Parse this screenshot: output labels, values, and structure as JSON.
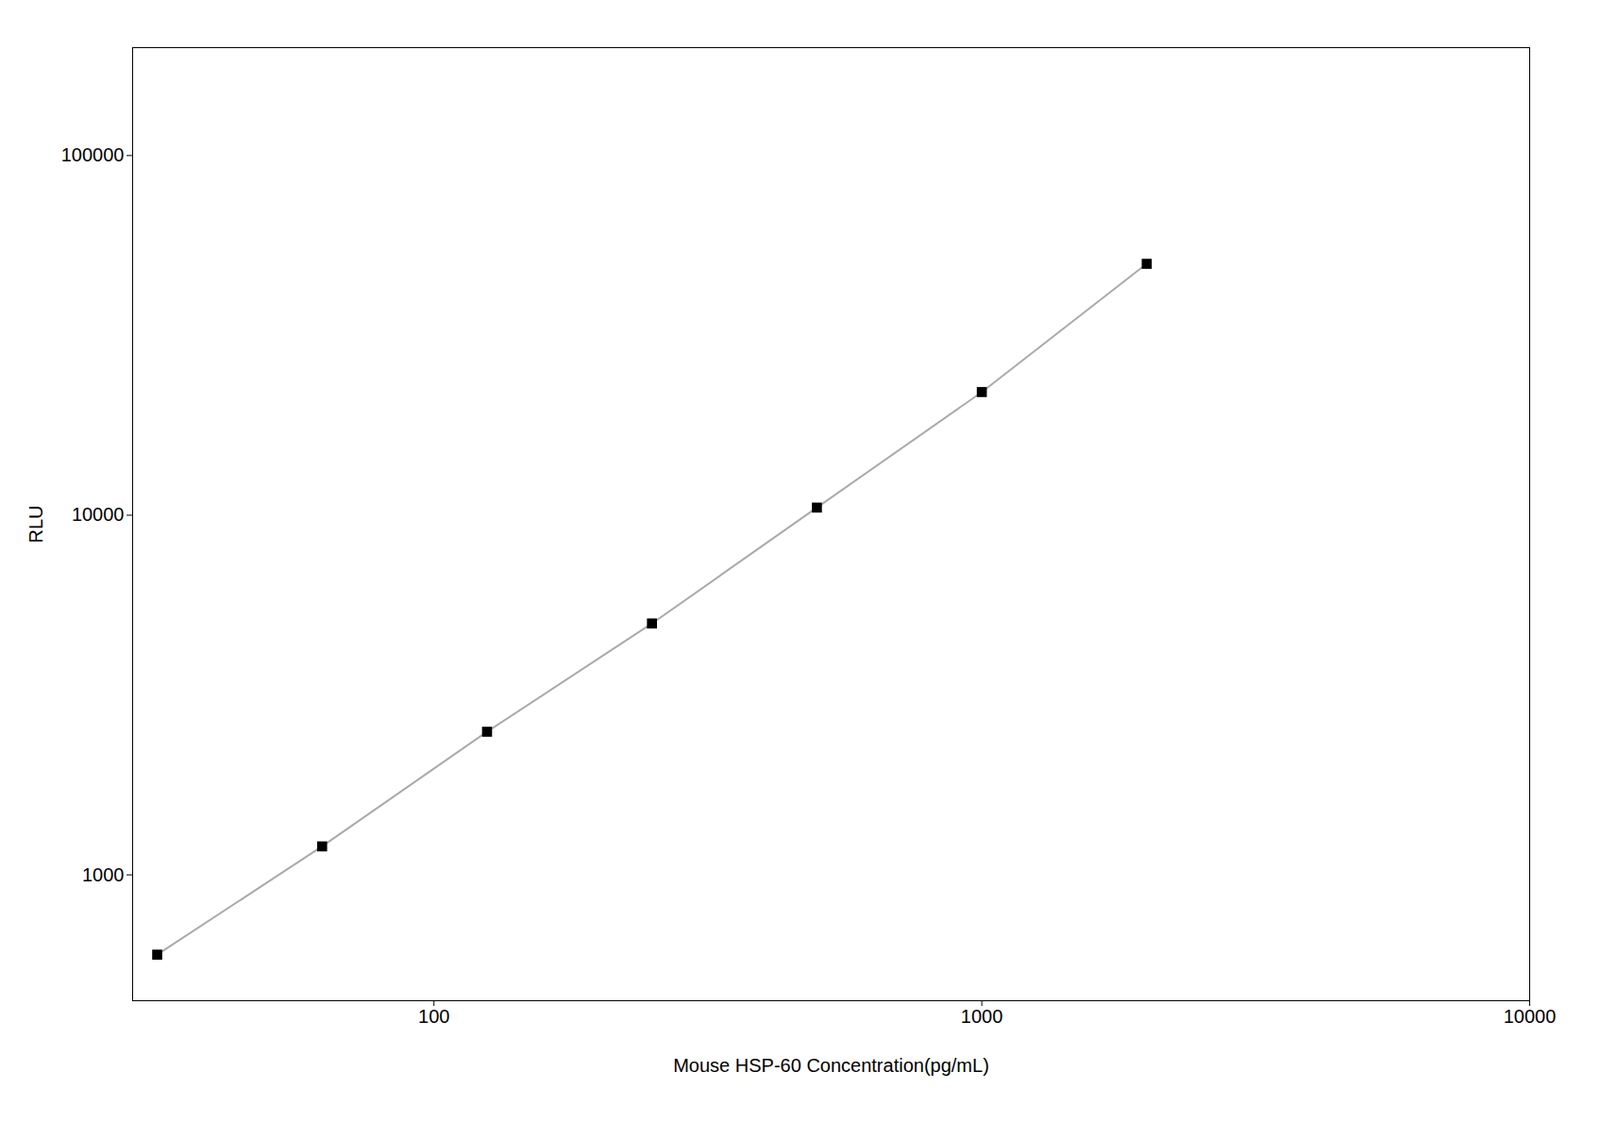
{
  "chart_data": {
    "type": "line",
    "xlabel": "Mouse HSP-60 Concentration(pg/mL)",
    "ylabel": "RLU",
    "x": [
      31.25,
      62.5,
      125,
      250,
      500,
      1000,
      2000
    ],
    "series": [
      {
        "type": "line",
        "color": "#aaaaaa",
        "line_style": "solid",
        "values": [
          600,
          1200,
          2500,
          5000,
          10500,
          22000,
          50000
        ]
      },
      {
        "type": "scatter",
        "color": "#000000",
        "marker": "square",
        "values": [
          600,
          1200,
          2500,
          5000,
          10500,
          22000,
          50000
        ]
      }
    ],
    "log": true,
    "xlim": [
      28.18382931264454,
      10000
    ],
    "ylim": [
      446.683592150963,
      199526.2314968879
    ],
    "xticks": [
      100,
      1000,
      10000
    ],
    "yticks": [
      1000,
      10000,
      100000
    ],
    "grid": false
  }
}
